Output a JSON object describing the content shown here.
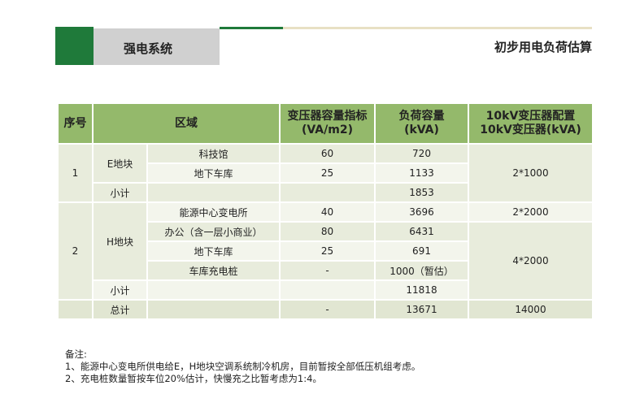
{
  "header": {
    "section": "强电系统",
    "title": "初步用电负荷估算"
  },
  "table": {
    "columns": [
      "序号",
      "区域",
      [
        "变压器容量指标",
        "(VA/m2)"
      ],
      [
        "负荷容量",
        "(kVA)"
      ],
      [
        "10kV变压器配置",
        "10kV变压器(kVA)"
      ]
    ],
    "rows": [
      [
        "1",
        "E地块",
        "科技馆",
        "60",
        "720",
        "2*1000"
      ],
      [
        "地下车库",
        "25",
        "1133"
      ],
      [
        "小计",
        "1853"
      ],
      [
        "2",
        "H地块",
        "能源中心变电所",
        "40",
        "3696",
        "2*2000"
      ],
      [
        "办公（含一层小商业）",
        "80",
        "6431",
        "4*2000"
      ],
      [
        "地下车库",
        "25",
        "691"
      ],
      [
        "车库充电桩",
        "-",
        "1000（暂估）"
      ],
      [
        "小计",
        "11818"
      ],
      [
        "总计",
        "-",
        "13671",
        "14000"
      ]
    ]
  },
  "notes": {
    "label": "备注:",
    "items": [
      "1、能源中心变电所供电给E，H地块空调系统制冷机房，目前暂按全部低压机组考虑。",
      "2、充电桩数量暂按车位20%估计，快慢充之比暂考虑为1:4。"
    ]
  }
}
